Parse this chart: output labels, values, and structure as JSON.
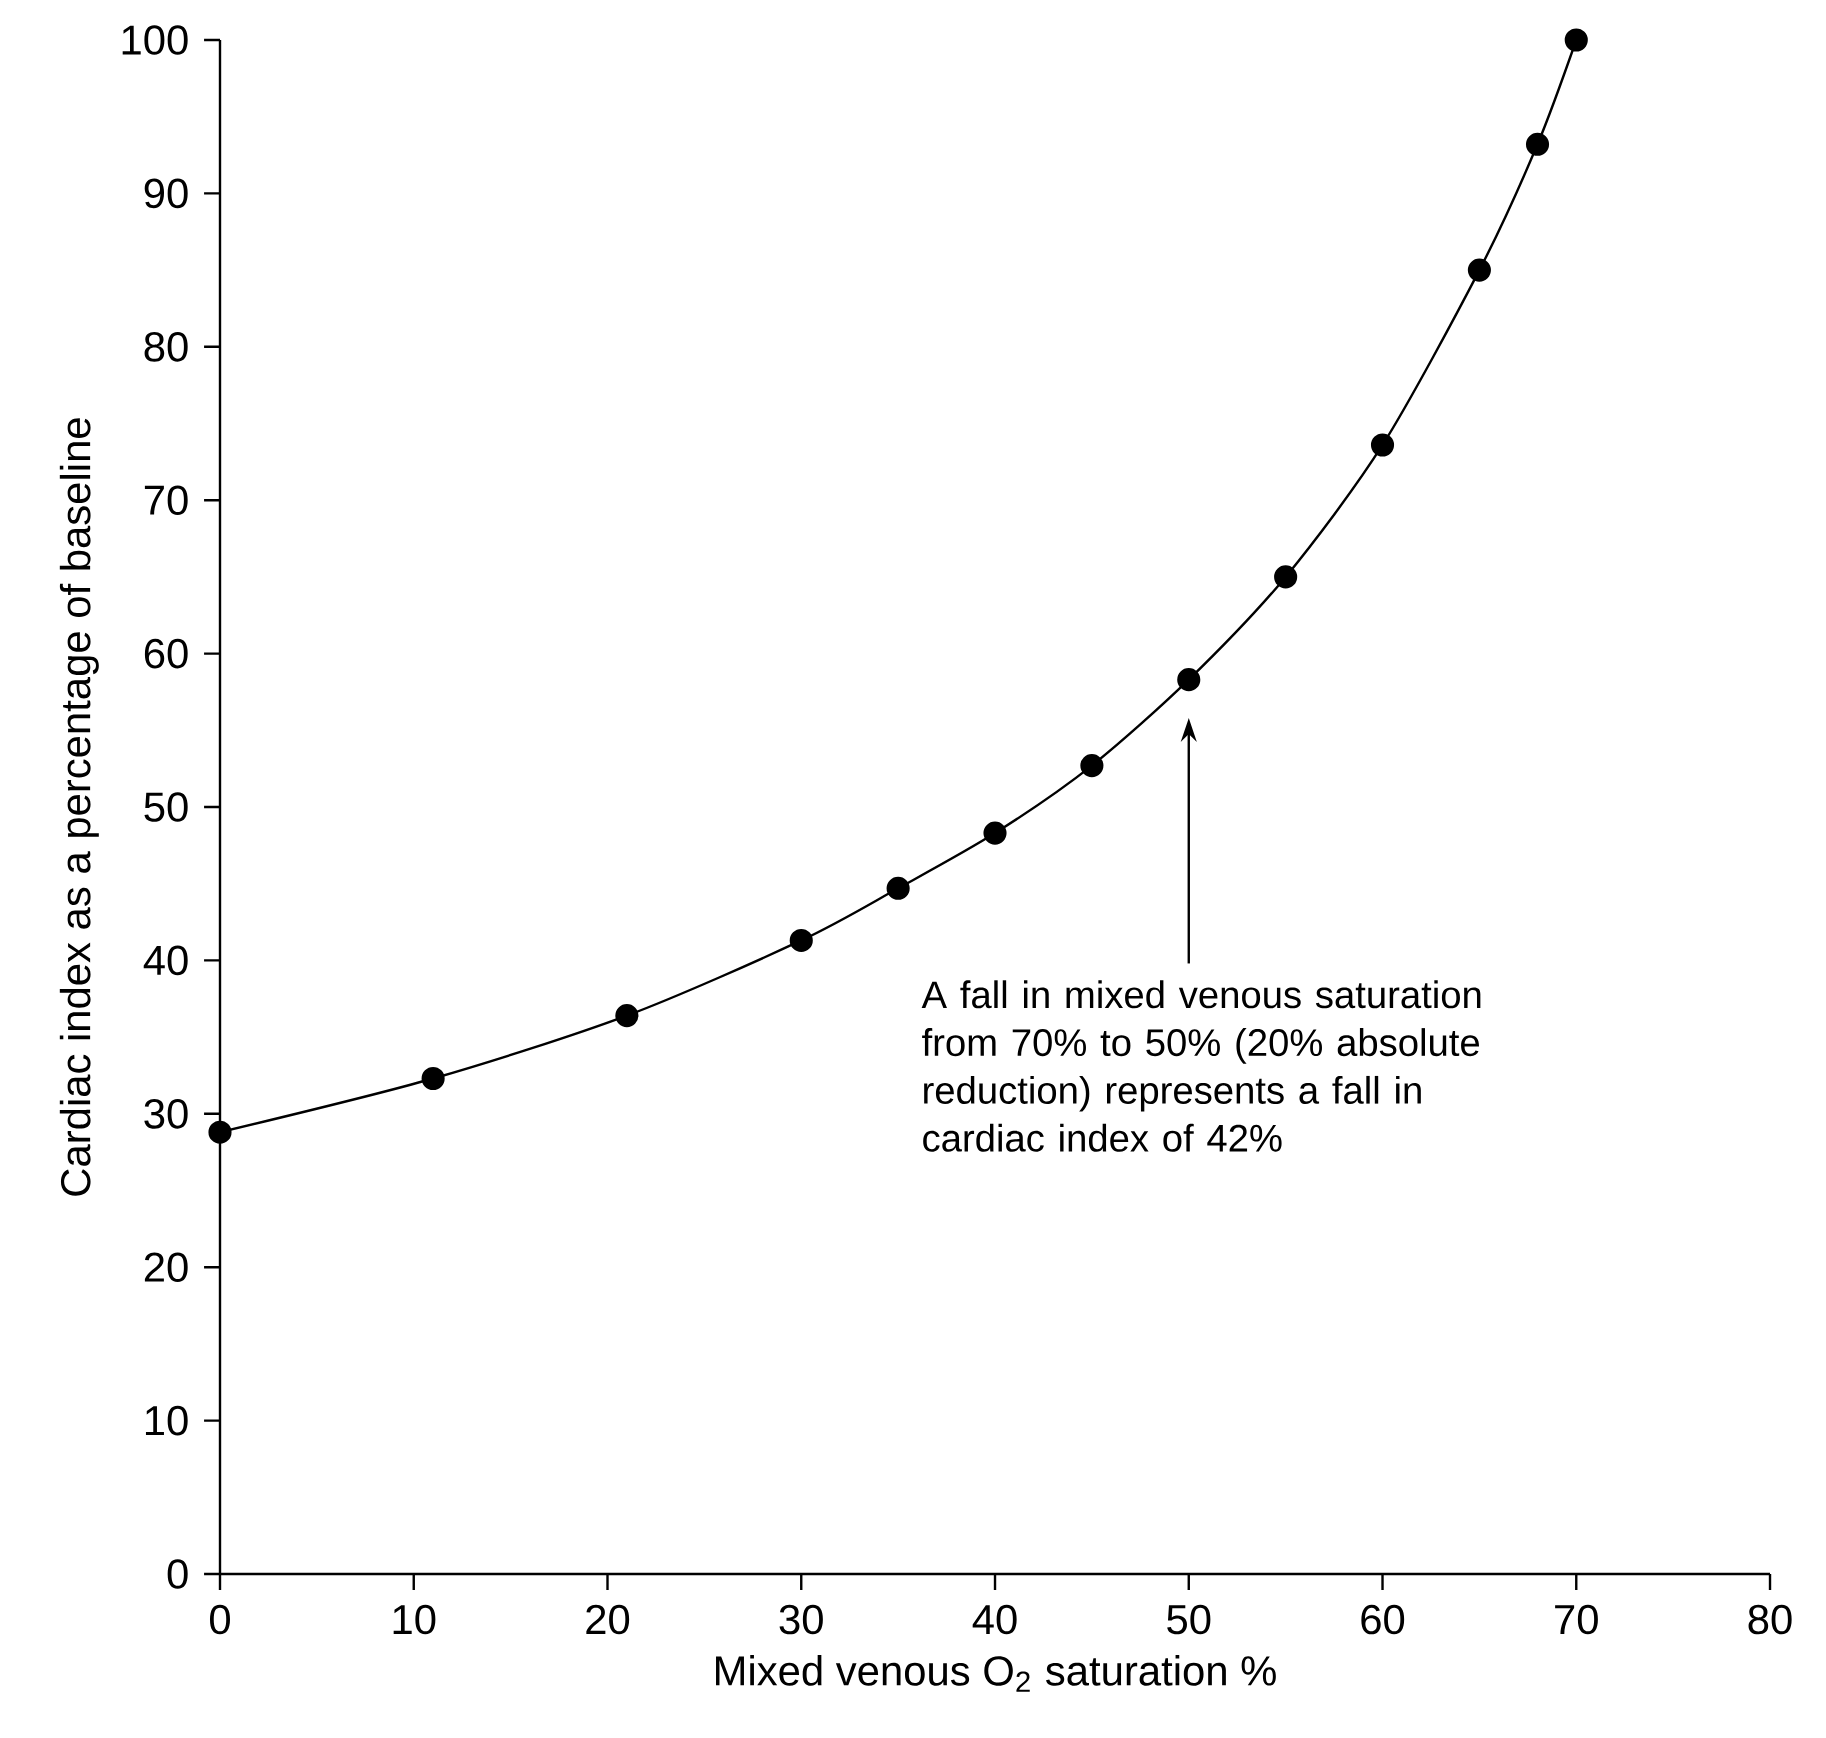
{
  "chart_data": {
    "type": "line",
    "xlabel": "Mixed venous O$_{2}$ saturation %",
    "ylabel": "Cardiac index as a percentage of baseline",
    "x": [
      0,
      11,
      21,
      30,
      35,
      40,
      45,
      50,
      55,
      60,
      65,
      68,
      70
    ],
    "series": [
      {
        "color": "#000000",
        "values": [
          28.8,
          32.3,
          36.4,
          41.3,
          44.7,
          48.3,
          52.7,
          58.3,
          65,
          73.6,
          85,
          93.2,
          100
        ]
      }
    ],
    "xlim": [
      0,
      80
    ],
    "ylim": [
      0,
      100
    ],
    "xticks": [
      0,
      10,
      20,
      30,
      40,
      50,
      60,
      70,
      80
    ],
    "yticks": [
      0,
      10,
      20,
      30,
      40,
      50,
      60,
      70,
      80,
      90,
      100
    ],
    "marker": "circle",
    "line_style": "solid",
    "annotations": [
      "A fall in mixed venous saturation from 70% to 50% (20% absolute reduction) represents a fall in cardiac index of 42%"
    ]
  }
}
